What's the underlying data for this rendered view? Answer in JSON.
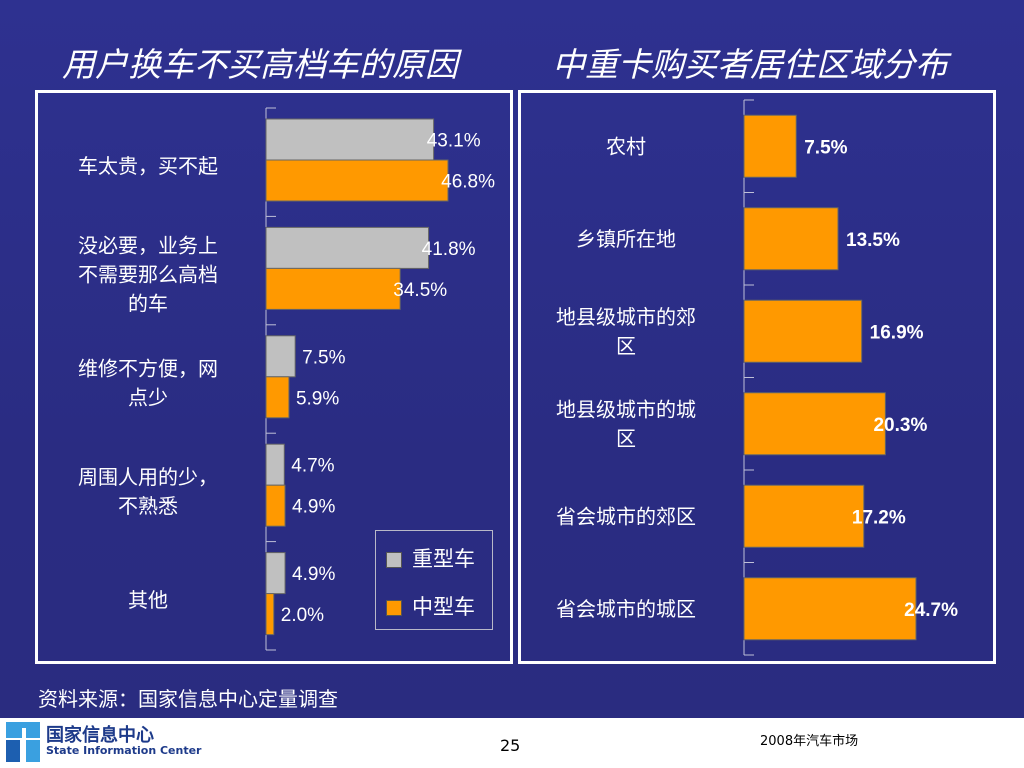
{
  "titles": {
    "left": "用户换车不买高档车的原因",
    "right": "中重卡购买者居住区域分布"
  },
  "colors": {
    "heavy": "#c0c0c0",
    "medium": "#ff9900"
  },
  "chart_data": [
    {
      "type": "bar",
      "orientation": "horizontal",
      "title": "用户换车不买高档车的原因",
      "categories": [
        [
          "车太贵，买不起"
        ],
        [
          "没必要，业务上",
          "不需要那么高档",
          "的车"
        ],
        [
          "维修不方便，网",
          "点少"
        ],
        [
          "周围人用的少，",
          "不熟悉"
        ],
        [
          "其他"
        ]
      ],
      "series": [
        {
          "name": "重型车",
          "color": "#c0c0c0",
          "values": [
            43.1,
            41.8,
            7.5,
            4.7,
            4.9
          ],
          "labels": [
            "43.1%",
            "41.8%",
            "7.5%",
            "4.7%",
            "4.9%"
          ]
        },
        {
          "name": "中型车",
          "color": "#ff9900",
          "values": [
            46.8,
            34.5,
            5.9,
            4.9,
            2.0
          ],
          "labels": [
            "46.8%",
            "34.5%",
            "5.9%",
            "4.9%",
            "2.0%"
          ]
        }
      ],
      "xlim": [
        0,
        50
      ],
      "legend": "bottom-right"
    },
    {
      "type": "bar",
      "orientation": "horizontal",
      "title": "中重卡购买者居住区域分布",
      "categories": [
        [
          "农村"
        ],
        [
          "乡镇所在地"
        ],
        [
          "地县级城市的郊",
          "区"
        ],
        [
          "地县级城市的城",
          "区"
        ],
        [
          "省会城市的郊区"
        ],
        [
          "省会城市的城区"
        ]
      ],
      "values": [
        7.5,
        13.5,
        16.9,
        20.3,
        17.2,
        24.7
      ],
      "labels": [
        "7.5%",
        "13.5%",
        "16.9%",
        "20.3%",
        "17.2%",
        "24.7%"
      ],
      "color": "#ff9900",
      "xlim": [
        0,
        30
      ]
    }
  ],
  "legend": {
    "heavy": "重型车",
    "medium": "中型车"
  },
  "source": "资料来源：国家信息中心定量调查",
  "footer": {
    "logo_cn": "国家信息中心",
    "logo_en": "State Information Center",
    "page": "25",
    "right_text": "2008年汽车市场"
  }
}
